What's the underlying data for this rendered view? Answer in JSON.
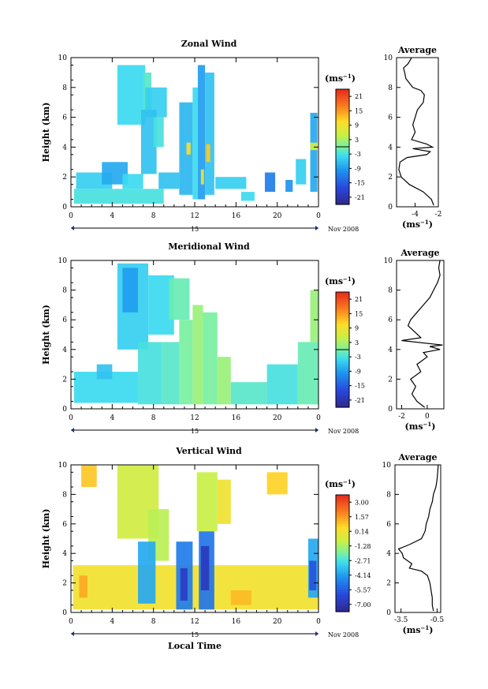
{
  "chart_data": [
    {
      "type": "heatmap",
      "title": "Zonal Wind",
      "ylabel": "Height (km)",
      "xlabel": "",
      "xlim": [
        0,
        24
      ],
      "ylim": [
        0,
        10
      ],
      "xticks": [
        "0",
        "4",
        "8",
        "12",
        "16",
        "20",
        "0"
      ],
      "yticks": [
        "0",
        "2",
        "4",
        "6",
        "8",
        "10"
      ],
      "date_day": "15",
      "date_month": "Nov 2008",
      "colorbar": {
        "unit": "(ms",
        "unit_exp": "−1",
        "unit_close": ")",
        "ticks": [
          "21",
          "15",
          "9",
          "3",
          "-3",
          "-9",
          "-15",
          "-21"
        ],
        "range": [
          -24,
          24
        ]
      },
      "regions": [
        {
          "x": [
            4.5,
            7.2
          ],
          "y": [
            5.5,
            9.5
          ],
          "v": -4
        },
        {
          "x": [
            7.0,
            7.8
          ],
          "y": [
            6.5,
            9.0
          ],
          "v": -2
        },
        {
          "x": [
            7.2,
            9.3
          ],
          "y": [
            6.0,
            8.0
          ],
          "v": -5
        },
        {
          "x": [
            6.8,
            8.3
          ],
          "y": [
            2.2,
            6.5
          ],
          "v": -6
        },
        {
          "x": [
            8.0,
            9.0
          ],
          "y": [
            4.0,
            6.0
          ],
          "v": -3
        },
        {
          "x": [
            10.5,
            11.8
          ],
          "y": [
            0.8,
            7.0
          ],
          "v": -7
        },
        {
          "x": [
            11.8,
            12.3
          ],
          "y": [
            0.5,
            8.0
          ],
          "v": -4
        },
        {
          "x": [
            12.3,
            13.0
          ],
          "y": [
            0.5,
            9.5
          ],
          "v": -9
        },
        {
          "x": [
            13.0,
            13.9
          ],
          "y": [
            0.8,
            9.0
          ],
          "v": -6
        },
        {
          "x": [
            11.2,
            11.6
          ],
          "y": [
            3.5,
            4.3
          ],
          "v": 10
        },
        {
          "x": [
            13.1,
            13.5
          ],
          "y": [
            3.0,
            4.2
          ],
          "v": 12
        },
        {
          "x": [
            12.6,
            12.9
          ],
          "y": [
            1.5,
            2.5
          ],
          "v": 8
        },
        {
          "x": [
            0.3,
            9.0
          ],
          "y": [
            0.2,
            1.2
          ],
          "v": -3
        },
        {
          "x": [
            0.5,
            4.0
          ],
          "y": [
            1.2,
            2.3
          ],
          "v": -5
        },
        {
          "x": [
            3.0,
            5.5
          ],
          "y": [
            1.5,
            3.0
          ],
          "v": -8
        },
        {
          "x": [
            5.0,
            7.0
          ],
          "y": [
            1.2,
            2.2
          ],
          "v": -4
        },
        {
          "x": [
            8.5,
            10.5
          ],
          "y": [
            1.2,
            2.3
          ],
          "v": -6
        },
        {
          "x": [
            14.0,
            17.0
          ],
          "y": [
            1.2,
            2.0
          ],
          "v": -5
        },
        {
          "x": [
            16.5,
            17.8
          ],
          "y": [
            0.4,
            1.0
          ],
          "v": -4
        },
        {
          "x": [
            18.8,
            19.8
          ],
          "y": [
            1.0,
            2.3
          ],
          "v": -12
        },
        {
          "x": [
            20.8,
            21.5
          ],
          "y": [
            1.0,
            1.8
          ],
          "v": -10
        },
        {
          "x": [
            21.8,
            22.8
          ],
          "y": [
            1.5,
            3.2
          ],
          "v": -5
        },
        {
          "x": [
            23.2,
            23.9
          ],
          "y": [
            1.0,
            6.3
          ],
          "v": -8
        },
        {
          "x": [
            23.2,
            23.9
          ],
          "y": [
            3.8,
            4.3
          ],
          "v": 6
        }
      ],
      "profile": {
        "title": "Average",
        "xlim": [
          -5.6,
          -2.0
        ],
        "xticks": [
          "-4",
          "-2"
        ],
        "xlabel_unit": "(ms",
        "xlabel_exp": "−1",
        "xlabel_close": ")",
        "points": [
          [
            -2.4,
            0.1
          ],
          [
            -2.6,
            0.5
          ],
          [
            -3.3,
            1.0
          ],
          [
            -4.5,
            1.5
          ],
          [
            -5.2,
            2.0
          ],
          [
            -5.4,
            2.5
          ],
          [
            -5.3,
            3.0
          ],
          [
            -4.7,
            3.3
          ],
          [
            -3.0,
            3.5
          ],
          [
            -2.7,
            3.7
          ],
          [
            -4.2,
            3.9
          ],
          [
            -2.5,
            4.0
          ],
          [
            -3.0,
            4.2
          ],
          [
            -4.3,
            4.5
          ],
          [
            -4.0,
            5.0
          ],
          [
            -4.2,
            5.5
          ],
          [
            -4.0,
            6.0
          ],
          [
            -3.8,
            6.5
          ],
          [
            -3.3,
            7.0
          ],
          [
            -3.2,
            7.5
          ],
          [
            -3.5,
            7.8
          ],
          [
            -4.2,
            8.0
          ],
          [
            -4.5,
            8.3
          ],
          [
            -4.8,
            8.6
          ],
          [
            -4.9,
            9.0
          ],
          [
            -5.0,
            9.3
          ],
          [
            -4.6,
            9.6
          ],
          [
            -4.3,
            10.0
          ]
        ]
      }
    },
    {
      "type": "heatmap",
      "title": "Meridional Wind",
      "ylabel": "Height (km)",
      "xlabel": "",
      "xlim": [
        0,
        24
      ],
      "ylim": [
        0,
        10
      ],
      "xticks": [
        "0",
        "4",
        "8",
        "12",
        "16",
        "20",
        "0"
      ],
      "yticks": [
        "0",
        "2",
        "4",
        "6",
        "8",
        "10"
      ],
      "date_day": "15",
      "date_month": "Nov 2008",
      "colorbar": {
        "unit": "(ms",
        "unit_exp": "−1",
        "unit_close": ")",
        "ticks": [
          "21",
          "15",
          "9",
          "3",
          "-3",
          "-9",
          "-15",
          "-21"
        ],
        "range": [
          -24,
          24
        ]
      },
      "regions": [
        {
          "x": [
            4.5,
            7.5
          ],
          "y": [
            4.0,
            9.8
          ],
          "v": -5
        },
        {
          "x": [
            5.0,
            6.5
          ],
          "y": [
            6.5,
            9.5
          ],
          "v": -9
        },
        {
          "x": [
            7.5,
            10.0
          ],
          "y": [
            5.0,
            9.0
          ],
          "v": -4
        },
        {
          "x": [
            9.5,
            11.5
          ],
          "y": [
            6.0,
            8.8
          ],
          "v": -1
        },
        {
          "x": [
            6.5,
            8.8
          ],
          "y": [
            0.3,
            4.5
          ],
          "v": -3
        },
        {
          "x": [
            8.8,
            10.5
          ],
          "y": [
            0.3,
            4.5
          ],
          "v": -2
        },
        {
          "x": [
            10.5,
            11.8
          ],
          "y": [
            0.3,
            6.0
          ],
          "v": 0
        },
        {
          "x": [
            11.8,
            12.8
          ],
          "y": [
            0.3,
            7.0
          ],
          "v": 2
        },
        {
          "x": [
            12.8,
            14.2
          ],
          "y": [
            0.3,
            6.5
          ],
          "v": 0
        },
        {
          "x": [
            14.2,
            15.5
          ],
          "y": [
            0.3,
            3.5
          ],
          "v": 2
        },
        {
          "x": [
            0.3,
            6.5
          ],
          "y": [
            0.4,
            2.5
          ],
          "v": -4
        },
        {
          "x": [
            2.5,
            4.0
          ],
          "y": [
            2.0,
            3.0
          ],
          "v": -6
        },
        {
          "x": [
            15.5,
            19.0
          ],
          "y": [
            0.3,
            1.8
          ],
          "v": -2
        },
        {
          "x": [
            19.0,
            22.0
          ],
          "y": [
            0.3,
            3.0
          ],
          "v": -3
        },
        {
          "x": [
            22.0,
            24.0
          ],
          "y": [
            0.3,
            4.5
          ],
          "v": -1
        },
        {
          "x": [
            23.2,
            24.0
          ],
          "y": [
            4.5,
            8.0
          ],
          "v": 2
        }
      ],
      "profile": {
        "title": "Average",
        "xlim": [
          -2.4,
          1.3
        ],
        "xticks": [
          "-2",
          "0"
        ],
        "xlabel_unit": "(ms",
        "xlabel_exp": "−1",
        "xlabel_close": ")",
        "points": [
          [
            -0.2,
            0.1
          ],
          [
            -0.8,
            0.5
          ],
          [
            -1.2,
            1.0
          ],
          [
            -0.9,
            1.5
          ],
          [
            -1.3,
            2.0
          ],
          [
            -0.5,
            2.5
          ],
          [
            -0.8,
            3.0
          ],
          [
            0.0,
            3.5
          ],
          [
            -0.3,
            3.8
          ],
          [
            1.0,
            4.0
          ],
          [
            0.2,
            4.2
          ],
          [
            1.2,
            4.3
          ],
          [
            -2.0,
            4.6
          ],
          [
            -0.5,
            4.8
          ],
          [
            -1.0,
            5.2
          ],
          [
            -1.5,
            5.6
          ],
          [
            -1.3,
            6.0
          ],
          [
            -0.8,
            6.5
          ],
          [
            -0.3,
            7.0
          ],
          [
            0.2,
            7.5
          ],
          [
            0.5,
            8.0
          ],
          [
            0.8,
            8.5
          ],
          [
            1.0,
            9.0
          ],
          [
            0.9,
            9.5
          ],
          [
            1.0,
            10.0
          ]
        ]
      }
    },
    {
      "type": "heatmap",
      "title": "Vertical Wind",
      "ylabel": "Height (km)",
      "xlabel": "Local Time",
      "xlim": [
        0,
        24
      ],
      "ylim": [
        0,
        10
      ],
      "xticks": [
        "0",
        "4",
        "8",
        "12",
        "16",
        "20",
        "0"
      ],
      "yticks": [
        "0",
        "2",
        "4",
        "6",
        "8",
        "10"
      ],
      "date_day": "15",
      "date_month": "Nov 2008",
      "colorbar": {
        "unit": "(ms",
        "unit_exp": "−1",
        "unit_close": ")",
        "ticks": [
          "3.00",
          "1.57",
          "0.14",
          "-1.28",
          "-2.71",
          "-4.14",
          "-5.57",
          "-7.00"
        ],
        "range": [
          -8.0,
          4.0
        ]
      },
      "regions": [
        {
          "x": [
            0.2,
            24.0
          ],
          "y": [
            0.2,
            3.2
          ],
          "v": 0.3
        },
        {
          "x": [
            4.5,
            8.5
          ],
          "y": [
            5.0,
            10.0
          ],
          "v": -0.6
        },
        {
          "x": [
            7.5,
            9.5
          ],
          "y": [
            3.5,
            7.0
          ],
          "v": -1.0
        },
        {
          "x": [
            6.5,
            8.2
          ],
          "y": [
            0.6,
            4.8
          ],
          "v": -4.0
        },
        {
          "x": [
            10.2,
            11.8
          ],
          "y": [
            0.2,
            4.8
          ],
          "v": -5.0
        },
        {
          "x": [
            10.6,
            11.3
          ],
          "y": [
            0.8,
            3.0
          ],
          "v": -6.8
        },
        {
          "x": [
            12.4,
            13.9
          ],
          "y": [
            0.2,
            5.5
          ],
          "v": -5.2
        },
        {
          "x": [
            12.6,
            13.4
          ],
          "y": [
            1.5,
            4.5
          ],
          "v": -7.0
        },
        {
          "x": [
            12.2,
            14.2
          ],
          "y": [
            5.5,
            9.5
          ],
          "v": -0.8
        },
        {
          "x": [
            14.2,
            15.5
          ],
          "y": [
            6.0,
            9.0
          ],
          "v": 0.2
        },
        {
          "x": [
            23.0,
            24.0
          ],
          "y": [
            1.0,
            5.0
          ],
          "v": -4.0
        },
        {
          "x": [
            23.1,
            23.8
          ],
          "y": [
            1.5,
            3.5
          ],
          "v": -6.0
        },
        {
          "x": [
            0.8,
            1.6
          ],
          "y": [
            1.0,
            2.5
          ],
          "v": 1.5
        },
        {
          "x": [
            15.5,
            17.5
          ],
          "y": [
            0.5,
            1.5
          ],
          "v": 1.2
        },
        {
          "x": [
            1.0,
            2.5
          ],
          "y": [
            8.5,
            10.0
          ],
          "v": 1.0
        },
        {
          "x": [
            19.0,
            21.0
          ],
          "y": [
            8.0,
            9.5
          ],
          "v": 0.8
        }
      ],
      "profile": {
        "title": "Average",
        "xlim": [
          -4.0,
          -0.2
        ],
        "xticks": [
          "-3.5",
          "-0.5"
        ],
        "xlabel_unit": "(ms",
        "xlabel_exp": "−1",
        "xlabel_close": ")",
        "points": [
          [
            -0.8,
            0.1
          ],
          [
            -0.9,
            0.5
          ],
          [
            -0.9,
            1.0
          ],
          [
            -1.0,
            1.5
          ],
          [
            -1.1,
            2.0
          ],
          [
            -1.3,
            2.5
          ],
          [
            -1.8,
            2.8
          ],
          [
            -2.8,
            3.0
          ],
          [
            -2.6,
            3.3
          ],
          [
            -3.3,
            3.7
          ],
          [
            -3.4,
            4.0
          ],
          [
            -3.7,
            4.3
          ],
          [
            -2.8,
            4.6
          ],
          [
            -1.8,
            5.0
          ],
          [
            -1.5,
            5.5
          ],
          [
            -1.4,
            6.0
          ],
          [
            -1.2,
            6.5
          ],
          [
            -1.1,
            7.0
          ],
          [
            -0.9,
            7.5
          ],
          [
            -0.8,
            8.0
          ],
          [
            -0.6,
            8.5
          ],
          [
            -0.5,
            9.0
          ],
          [
            -0.45,
            9.5
          ],
          [
            -0.4,
            10.0
          ]
        ]
      }
    }
  ]
}
